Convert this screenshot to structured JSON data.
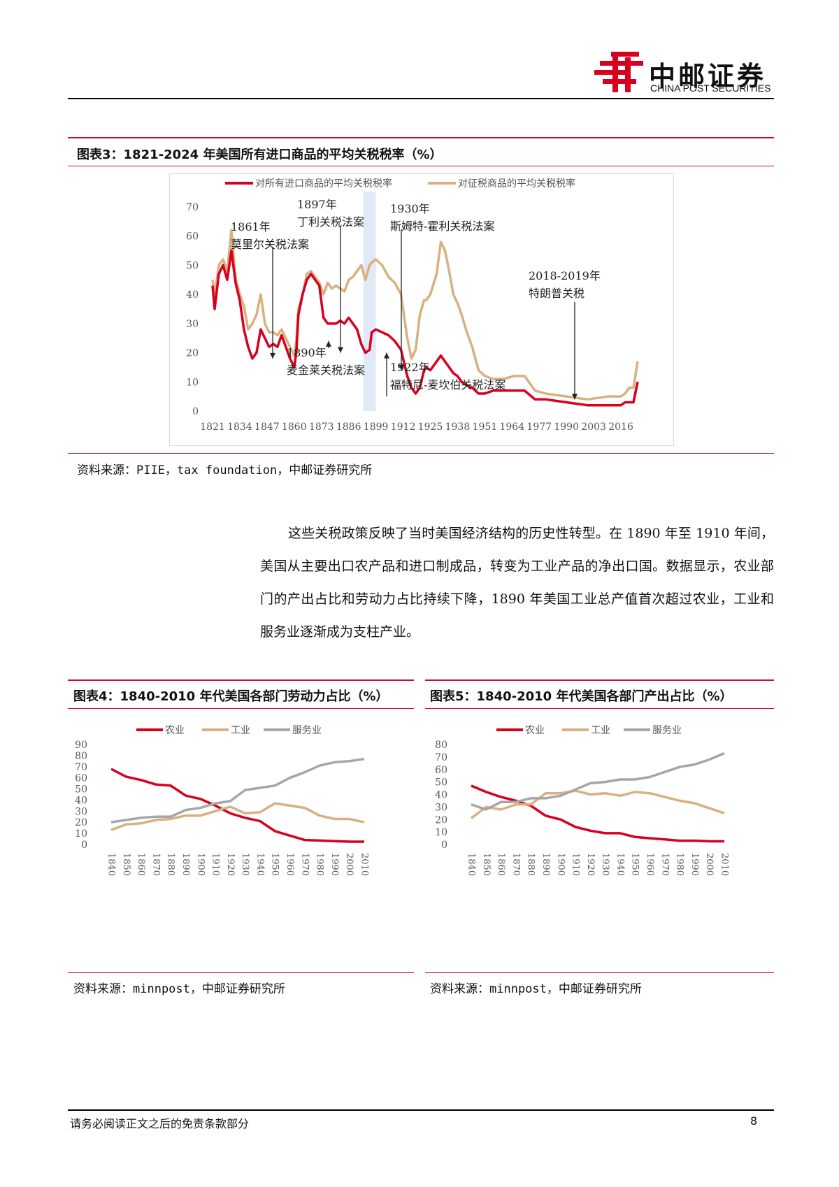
{
  "header": {
    "logo_cn": "中邮证券",
    "logo_en": "CHINA POST SECURITIES"
  },
  "figure3": {
    "title": "图表3：1821-2024 年美国所有进口商品的平均关税税率（%）",
    "source": "资料来源：PIIE，tax foundation，中邮证券研究所",
    "chart_data": {
      "type": "line",
      "title": "",
      "ylim": [
        0,
        70
      ],
      "yticks": [
        0,
        10,
        20,
        30,
        40,
        50,
        60,
        70
      ],
      "xlim": [
        1821,
        2024
      ],
      "xticks": [
        1821,
        1834,
        1847,
        1860,
        1873,
        1886,
        1899,
        1912,
        1925,
        1938,
        1951,
        1964,
        1977,
        1990,
        2003,
        2016
      ],
      "legend": "top",
      "series": [
        {
          "name": "对所有进口商品的平均关税税率",
          "color": "#d7001f",
          "x": [
            1821,
            1822,
            1824,
            1826,
            1828,
            1830,
            1832,
            1834,
            1836,
            1838,
            1840,
            1842,
            1844,
            1846,
            1848,
            1850,
            1852,
            1854,
            1856,
            1858,
            1860,
            1861,
            1862,
            1864,
            1866,
            1868,
            1870,
            1872,
            1874,
            1876,
            1878,
            1880,
            1882,
            1884,
            1886,
            1888,
            1890,
            1892,
            1894,
            1896,
            1897,
            1899,
            1902,
            1905,
            1908,
            1911,
            1913,
            1914,
            1916,
            1918,
            1920,
            1922,
            1923,
            1925,
            1928,
            1930,
            1932,
            1934,
            1936,
            1938,
            1940,
            1942,
            1945,
            1948,
            1951,
            1955,
            1960,
            1965,
            1970,
            1975,
            1980,
            1990,
            2000,
            2010,
            2016,
            2018,
            2020,
            2022,
            2024
          ],
          "values": [
            43,
            35,
            47,
            50,
            45,
            55,
            44,
            38,
            28,
            22,
            18,
            20,
            28,
            25,
            22,
            23,
            22,
            26,
            22,
            18,
            15,
            20,
            33,
            40,
            45,
            47,
            45,
            43,
            32,
            30,
            30,
            30,
            31,
            30,
            32,
            30,
            28,
            23,
            20,
            21,
            27,
            28,
            27,
            26,
            24,
            21,
            15,
            12,
            8,
            6,
            8,
            14,
            15,
            14,
            17,
            19,
            17,
            15,
            13,
            12,
            10,
            9,
            8,
            6,
            6,
            7,
            7,
            7,
            7,
            4,
            4,
            3,
            2,
            2,
            2,
            3,
            3,
            3,
            10
          ]
        },
        {
          "name": "对征税商品的平均关税税率",
          "color": "#d9b07f",
          "x": [
            1821,
            1822,
            1824,
            1826,
            1828,
            1830,
            1832,
            1834,
            1836,
            1838,
            1840,
            1842,
            1844,
            1846,
            1848,
            1850,
            1852,
            1854,
            1856,
            1858,
            1860,
            1861,
            1862,
            1864,
            1866,
            1868,
            1870,
            1872,
            1874,
            1876,
            1878,
            1880,
            1882,
            1884,
            1886,
            1888,
            1890,
            1892,
            1894,
            1896,
            1897,
            1899,
            1902,
            1905,
            1908,
            1911,
            1913,
            1914,
            1916,
            1918,
            1920,
            1922,
            1923,
            1925,
            1928,
            1930,
            1932,
            1934,
            1936,
            1938,
            1940,
            1942,
            1945,
            1948,
            1951,
            1955,
            1960,
            1965,
            1970,
            1975,
            1980,
            1990,
            2000,
            2010,
            2016,
            2018,
            2020,
            2022,
            2024
          ],
          "values": [
            45,
            40,
            50,
            52,
            48,
            62,
            46,
            40,
            36,
            28,
            30,
            33,
            40,
            30,
            27,
            27,
            26,
            28,
            25,
            22,
            19,
            24,
            35,
            40,
            47,
            48,
            46,
            44,
            40,
            44,
            42,
            43,
            42,
            41,
            45,
            46,
            48,
            50,
            45,
            50,
            51,
            52,
            50,
            46,
            44,
            40,
            30,
            25,
            18,
            21,
            33,
            38,
            38,
            40,
            47,
            58,
            55,
            48,
            40,
            37,
            33,
            28,
            22,
            14,
            12,
            11,
            11,
            12,
            12,
            7,
            6,
            5,
            4,
            5,
            5,
            6,
            8,
            8,
            17
          ]
        }
      ],
      "annotations": [
        {
          "label": "1861年",
          "label2": "莫里尔关税法案",
          "year": 1861
        },
        {
          "label": "1890年",
          "label2": "麦金莱关税法案",
          "year": 1890
        },
        {
          "label": "1897年",
          "label2": "丁利关税法案",
          "year": 1897
        },
        {
          "label": "1922年",
          "label2": "福特尼-麦坎伯关税法案",
          "year": 1922
        },
        {
          "label": "1930年",
          "label2": "斯姆特-霍利关税法案",
          "year": 1930
        },
        {
          "label": "2018-2019年",
          "label2": "特朗普关税",
          "year": 2018
        }
      ]
    }
  },
  "body": {
    "paragraph": "这些关税政策反映了当时美国经济结构的历史性转型。在 1890 年至 1910 年间，美国从主要出口农产品和进口制成品，转变为工业产品的净出口国。数据显示，农业部门的产出占比和劳动力占比持续下降，1890 年美国工业总产值首次超过农业，工业和服务业逐渐成为支柱产业。"
  },
  "figure4": {
    "title": "图表4：1840-2010 年代美国各部门劳动力占比（%）",
    "source": "资料来源：minnpost，中邮证券研究所",
    "chart_data": {
      "type": "line",
      "title": "",
      "ylim": [
        0,
        90
      ],
      "yticks": [
        0,
        10,
        20,
        30,
        40,
        50,
        60,
        70,
        80,
        90
      ],
      "legend": "top",
      "categories": [
        "1840",
        "1850",
        "1860",
        "1870",
        "1880",
        "1890",
        "1900",
        "1910",
        "1920",
        "1930",
        "1940",
        "1950",
        "1960",
        "1970",
        "1980",
        "1990",
        "2000",
        "2010"
      ],
      "series": [
        {
          "name": "农业",
          "color": "#d7001f",
          "values": [
            68,
            61,
            58,
            54,
            53,
            44,
            41,
            35,
            28,
            24,
            21,
            12,
            8,
            4,
            3.5,
            3,
            2.5,
            2.5
          ]
        },
        {
          "name": "工业",
          "color": "#d9b07f",
          "values": [
            13,
            18,
            19,
            22,
            23,
            26,
            26,
            30,
            34,
            28,
            29,
            37,
            35,
            33,
            26,
            23,
            23,
            20
          ]
        },
        {
          "name": "服务业",
          "color": "#a6a6a6",
          "values": [
            20,
            22,
            24,
            25,
            25,
            31,
            33,
            37,
            39,
            49,
            51,
            53,
            60,
            65,
            71,
            74,
            75,
            77
          ]
        }
      ]
    }
  },
  "figure5": {
    "title": "图表5：1840-2010 年代美国各部门产出占比（%）",
    "source": "资料来源：minnpost，中邮证券研究所",
    "chart_data": {
      "type": "line",
      "title": "",
      "ylim": [
        0,
        80
      ],
      "yticks": [
        0,
        10,
        20,
        30,
        40,
        50,
        60,
        70,
        80
      ],
      "legend": "top",
      "categories": [
        "1840",
        "1850",
        "1860",
        "1870",
        "1880",
        "1890",
        "1900",
        "1910",
        "1920",
        "1930",
        "1940",
        "1950",
        "1960",
        "1970",
        "1980",
        "1990",
        "2000",
        "2010"
      ],
      "series": [
        {
          "name": "农业",
          "color": "#d7001f",
          "values": [
            47,
            42,
            38,
            35,
            31,
            23,
            20,
            14,
            11,
            9,
            9,
            6,
            5,
            4,
            3,
            3,
            2.5,
            2.5
          ]
        },
        {
          "name": "工业",
          "color": "#d9b07f",
          "values": [
            21,
            30,
            28,
            32,
            32,
            41,
            41,
            43,
            40,
            41,
            39,
            42,
            41,
            38,
            35,
            33,
            29,
            25
          ]
        },
        {
          "name": "服务业",
          "color": "#a6a6a6",
          "values": [
            32,
            28,
            34,
            34,
            37,
            37,
            39,
            44,
            49,
            50,
            52,
            52,
            54,
            58,
            62,
            64,
            68,
            73
          ]
        }
      ]
    }
  },
  "footer": {
    "disclaimer": "请务必阅读正文之后的免责条款部分",
    "page": "8"
  }
}
